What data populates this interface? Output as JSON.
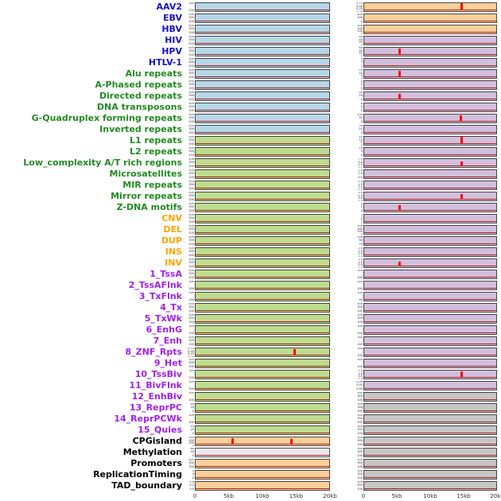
{
  "chart_data": {
    "type": "area",
    "title": "",
    "x_axis": {
      "labels": [
        "0",
        "5kb",
        "10kb",
        "15kb",
        "20kb"
      ],
      "positions": [
        0,
        0.25,
        0.5,
        0.75,
        1
      ]
    },
    "colors": {
      "label_blue": "#1414cc",
      "label_green": "#228b22",
      "label_orange": "#ffa500",
      "label_purple": "#a020f0",
      "label_black": "#000000",
      "panel_blue": "#b5d7e8",
      "panel_green": "#bedc8f",
      "panel_orange": "#fbcf9b",
      "panel_purple": "#d2bfde",
      "panel_gray": "#c6c6c6",
      "panel_pale": "#ece6ee",
      "spike": "#ff0000",
      "baseline": "#a8281e"
    },
    "rows": [
      {
        "label": "AAV2",
        "group": "blue",
        "lbg": "blue",
        "rbg": "orange",
        "lt": [
          "300",
          "100"
        ],
        "rt": [
          "0.75",
          "0.50",
          "0.25",
          "0.00"
        ],
        "ls": [],
        "rs": [
          {
            "x": 0.73,
            "h": 0.95
          }
        ]
      },
      {
        "label": "EBV",
        "group": "blue",
        "lbg": "blue",
        "rbg": "orange",
        "lt": [
          "500",
          "300",
          "100"
        ],
        "rt": [
          "400",
          "200",
          "0"
        ],
        "ls": [],
        "rs": []
      },
      {
        "label": "HBV",
        "group": "blue",
        "lbg": "blue",
        "rbg": "orange",
        "lt": [
          "500",
          "300",
          "100"
        ],
        "rt": [
          "300",
          "200",
          "100",
          "0"
        ],
        "ls": [],
        "rs": []
      },
      {
        "label": "HIV",
        "group": "blue",
        "lbg": "blue",
        "rbg": "purple",
        "lt": [
          "500",
          "300",
          "100"
        ],
        "rt": [
          "60",
          "40",
          "20",
          "0"
        ],
        "ls": [],
        "rs": []
      },
      {
        "label": "HPV",
        "group": "blue",
        "lbg": "blue",
        "rbg": "purple",
        "lt": [
          "500",
          "300",
          "100"
        ],
        "rt": [
          "60",
          "40",
          "20",
          "0"
        ],
        "ls": [],
        "rs": [
          {
            "x": 0.26,
            "h": 0.8
          }
        ]
      },
      {
        "label": "HTLV-1",
        "group": "blue",
        "lbg": "blue",
        "rbg": "purple",
        "lt": [
          "500",
          "300",
          "100"
        ],
        "rt": [
          "5",
          "3",
          "1"
        ],
        "ls": [],
        "rs": []
      },
      {
        "label": "Alu repeats",
        "group": "green",
        "lbg": "blue",
        "rbg": "purple",
        "lt": [
          "500",
          "300",
          "100"
        ],
        "rt": [
          "15",
          "10",
          "5",
          "0"
        ],
        "ls": [],
        "rs": [
          {
            "x": 0.26,
            "h": 0.8
          }
        ]
      },
      {
        "label": "A-Phased repeats",
        "group": "green",
        "lbg": "blue",
        "rbg": "purple",
        "lt": [
          "500",
          "300",
          "100"
        ],
        "rt": [
          "4",
          "2",
          "0"
        ],
        "ls": [],
        "rs": []
      },
      {
        "label": "Directed repeats",
        "group": "green",
        "lbg": "blue",
        "rbg": "purple",
        "lt": [
          "500",
          "300",
          "100"
        ],
        "rt": [
          "40",
          "20",
          "0"
        ],
        "ls": [],
        "rs": [
          {
            "x": 0.26,
            "h": 0.75
          }
        ]
      },
      {
        "label": "DNA transposons",
        "group": "green",
        "lbg": "blue",
        "rbg": "purple",
        "lt": [
          "500",
          "300",
          "100"
        ],
        "rt": [
          "8",
          "4",
          "0"
        ],
        "ls": [],
        "rs": []
      },
      {
        "label": "G-Quadruplex forming repeats",
        "group": "green",
        "lbg": "blue",
        "rbg": "purple",
        "lt": [
          "500",
          "300",
          "100"
        ],
        "rt": [
          "100",
          "50",
          "0"
        ],
        "ls": [],
        "rs": [
          {
            "x": 0.72,
            "h": 0.85
          }
        ]
      },
      {
        "label": "Inverted repeats",
        "group": "green",
        "lbg": "blue",
        "rbg": "purple",
        "lt": [
          "500",
          "300",
          "100"
        ],
        "rt": [
          "20",
          "10",
          "0"
        ],
        "ls": [],
        "rs": []
      },
      {
        "label": "L1 repeats",
        "group": "green",
        "lbg": "green",
        "rbg": "purple",
        "lt": [
          "500",
          "300",
          "100"
        ],
        "rt": [
          "15",
          "10",
          "5",
          "0"
        ],
        "ls": [],
        "rs": [
          {
            "x": 0.73,
            "h": 0.9
          }
        ]
      },
      {
        "label": "L2 repeats",
        "group": "green",
        "lbg": "green",
        "rbg": "purple",
        "lt": [
          "500",
          "300",
          "100"
        ],
        "rt": [
          "10",
          "5",
          "0"
        ],
        "ls": [],
        "rs": []
      },
      {
        "label": "Low_complexity A/T rich regions",
        "group": "green",
        "lbg": "green",
        "rbg": "purple",
        "lt": [
          "500",
          "300",
          "100"
        ],
        "rt": [
          "7.5",
          "5.0",
          "2.5",
          "0.0"
        ],
        "ls": [],
        "rs": [
          {
            "x": 0.73,
            "h": 0.6
          }
        ]
      },
      {
        "label": "Microsatellites",
        "group": "green",
        "lbg": "green",
        "rbg": "purple",
        "lt": [
          "500",
          "300",
          "100"
        ],
        "rt": [
          "2.0",
          "1.0",
          "0.0"
        ],
        "ls": [],
        "rs": []
      },
      {
        "label": "MIR repeats",
        "group": "green",
        "lbg": "green",
        "rbg": "purple",
        "lt": [
          "500",
          "300",
          "100"
        ],
        "rt": [
          "2.0",
          "1.5",
          "1.0",
          "0.5"
        ],
        "ls": [],
        "rs": []
      },
      {
        "label": "Mirror repeats",
        "group": "green",
        "lbg": "green",
        "rbg": "purple",
        "lt": [
          "500",
          "300",
          "100"
        ],
        "rt": [
          "1.5",
          "1.0",
          "0.5",
          "0.0"
        ],
        "ls": [],
        "rs": [
          {
            "x": 0.73,
            "h": 0.7
          }
        ]
      },
      {
        "label": "Z-DNA motifs",
        "group": "green",
        "lbg": "green",
        "rbg": "purple",
        "lt": [
          "500",
          "300",
          "100"
        ],
        "rt": [
          "2",
          "1",
          "0"
        ],
        "ls": [],
        "rs": [
          {
            "x": 0.26,
            "h": 0.75
          }
        ]
      },
      {
        "label": "CNV",
        "group": "orange",
        "lbg": "green",
        "rbg": "purple",
        "lt": [
          "500",
          "300",
          "100"
        ],
        "rt": [
          "3",
          "2",
          "1",
          "0"
        ],
        "ls": [],
        "rs": []
      },
      {
        "label": "DEL",
        "group": "orange",
        "lbg": "green",
        "rbg": "purple",
        "lt": [
          "500",
          "300",
          "100"
        ],
        "rt": [
          "300",
          "200",
          "100",
          "0"
        ],
        "ls": [],
        "rs": []
      },
      {
        "label": "DUP",
        "group": "orange",
        "lbg": "green",
        "rbg": "purple",
        "lt": [
          "500",
          "300",
          "100"
        ],
        "rt": [
          "100",
          "60",
          "20"
        ],
        "ls": [],
        "rs": []
      },
      {
        "label": "INS",
        "group": "orange",
        "lbg": "green",
        "rbg": "purple",
        "lt": [
          "500",
          "300",
          "100"
        ],
        "rt": [
          "1.5",
          "1.0",
          "0.5",
          "0.0"
        ],
        "ls": [],
        "rs": []
      },
      {
        "label": "INV",
        "group": "orange",
        "lbg": "green",
        "rbg": "purple",
        "lt": [
          "500",
          "300",
          "100"
        ],
        "rt": [
          "1.5",
          "1.0",
          "0.5",
          "0.0"
        ],
        "ls": [],
        "rs": [
          {
            "x": 0.26,
            "h": 0.65
          }
        ]
      },
      {
        "label": "1_TssA",
        "group": "purple",
        "lbg": "green",
        "rbg": "purple",
        "lt": [
          "500",
          "300",
          "100"
        ],
        "rt": [
          "300",
          "100"
        ],
        "ls": [],
        "rs": []
      },
      {
        "label": "2_TssAFlnk",
        "group": "purple",
        "lbg": "green",
        "rbg": "purple",
        "lt": [
          "300",
          "100"
        ],
        "rt": [
          "300",
          "100"
        ],
        "ls": [],
        "rs": []
      },
      {
        "label": "3_TxFlnk",
        "group": "purple",
        "lbg": "green",
        "rbg": "purple",
        "lt": [
          "300",
          "100"
        ],
        "rt": [
          "150",
          "50"
        ],
        "ls": [],
        "rs": []
      },
      {
        "label": "4_Tx",
        "group": "purple",
        "lbg": "green",
        "rbg": "purple",
        "lt": [
          "500",
          "300",
          "100"
        ],
        "rt": [
          "500",
          "300",
          "100"
        ],
        "ls": [],
        "rs": []
      },
      {
        "label": "5_TxWk",
        "group": "purple",
        "lbg": "green",
        "rbg": "purple",
        "lt": [
          "500",
          "300",
          "100"
        ],
        "rt": [
          "500",
          "300",
          "100"
        ],
        "ls": [],
        "rs": []
      },
      {
        "label": "6_EnhG",
        "group": "purple",
        "lbg": "green",
        "rbg": "purple",
        "lt": [
          "300",
          "100"
        ],
        "rt": [
          "300",
          "100"
        ],
        "ls": [],
        "rs": []
      },
      {
        "label": "7_Enh",
        "group": "purple",
        "lbg": "green",
        "rbg": "purple",
        "lt": [
          "500",
          "300",
          "100"
        ],
        "rt": [
          "300",
          "100"
        ],
        "ls": [],
        "rs": []
      },
      {
        "label": "8_ZNF_Rpts",
        "group": "purple",
        "lbg": "green",
        "rbg": "purple",
        "lt": [
          "0.75",
          "0.50",
          "0.25",
          "0.00"
        ],
        "rt": [
          "300",
          "100"
        ],
        "ls": [
          {
            "x": 0.73,
            "h": 0.85
          }
        ],
        "rs": []
      },
      {
        "label": "9_Het",
        "group": "purple",
        "lbg": "green",
        "rbg": "purple",
        "lt": [
          "500",
          "300",
          "100"
        ],
        "rt": [
          "300",
          "100"
        ],
        "ls": [],
        "rs": []
      },
      {
        "label": "10_TssBiv",
        "group": "purple",
        "lbg": "green",
        "rbg": "purple",
        "lt": [
          "300",
          "100"
        ],
        "rt": [
          "1.5",
          "1.0",
          "0.5",
          "0.0"
        ],
        "ls": [],
        "rs": [
          {
            "x": 0.73,
            "h": 0.85
          }
        ]
      },
      {
        "label": "11_BivFlnk",
        "group": "purple",
        "lbg": "green",
        "rbg": "purple",
        "lt": [
          "300",
          "100"
        ],
        "rt": [
          "0.04",
          "0.02",
          "0.00"
        ],
        "ls": [],
        "rs": []
      },
      {
        "label": "12_EnhBiv",
        "group": "purple",
        "lbg": "green",
        "rbg": "gray",
        "lt": [
          "300",
          "100"
        ],
        "rt": [
          "500",
          "300",
          "100"
        ],
        "ls": [],
        "rs": []
      },
      {
        "label": "13_ReprPC",
        "group": "purple",
        "lbg": "green",
        "rbg": "gray",
        "lt": [
          "40",
          "20",
          "0"
        ],
        "rt": [
          "500",
          "300",
          "100"
        ],
        "ls": [],
        "rs": []
      },
      {
        "label": "14_ReprPCWk",
        "group": "purple",
        "lbg": "green",
        "rbg": "gray",
        "lt": [
          "300",
          "100"
        ],
        "rt": [
          "500",
          "300",
          "100"
        ],
        "ls": [],
        "rs": []
      },
      {
        "label": "15_Quies",
        "group": "purple",
        "lbg": "green",
        "rbg": "gray",
        "lt": [
          "40",
          "20",
          "0"
        ],
        "rt": [
          "500",
          "300",
          "100"
        ],
        "ls": [],
        "rs": []
      },
      {
        "label": "CPGisland",
        "group": "black",
        "lbg": "orange",
        "rbg": "gray",
        "lt": [
          "300",
          "200",
          "100",
          "0"
        ],
        "rt": [
          "500",
          "300",
          "100"
        ],
        "ls": [
          {
            "x": 0.27,
            "h": 0.85
          },
          {
            "x": 0.71,
            "h": 0.7
          }
        ],
        "rs": []
      },
      {
        "label": "Methylation",
        "group": "black",
        "lbg": "pale",
        "rbg": "gray",
        "lt": [
          "80",
          "40",
          "0"
        ],
        "rt": [
          "500",
          "300",
          "100"
        ],
        "ls": [],
        "rs": []
      },
      {
        "label": "Promoters",
        "group": "black",
        "lbg": "orange",
        "rbg": "gray",
        "lt": [
          "500",
          "300",
          "100"
        ],
        "rt": [
          "500",
          "300",
          "100"
        ],
        "ls": [],
        "rs": []
      },
      {
        "label": "ReplicationTiming",
        "group": "black",
        "lbg": "orange",
        "rbg": "gray",
        "lt": [
          "2",
          "0",
          "-2"
        ],
        "rt": [
          "500",
          "300",
          "100"
        ],
        "ls": [],
        "rs": []
      },
      {
        "label": "TAD_boundary",
        "group": "black",
        "lbg": "orange",
        "rbg": "gray",
        "lt": [
          "0.8",
          "0.4",
          "0.0"
        ],
        "rt": [
          "500",
          "300",
          "100"
        ],
        "ls": [],
        "rs": []
      }
    ]
  }
}
